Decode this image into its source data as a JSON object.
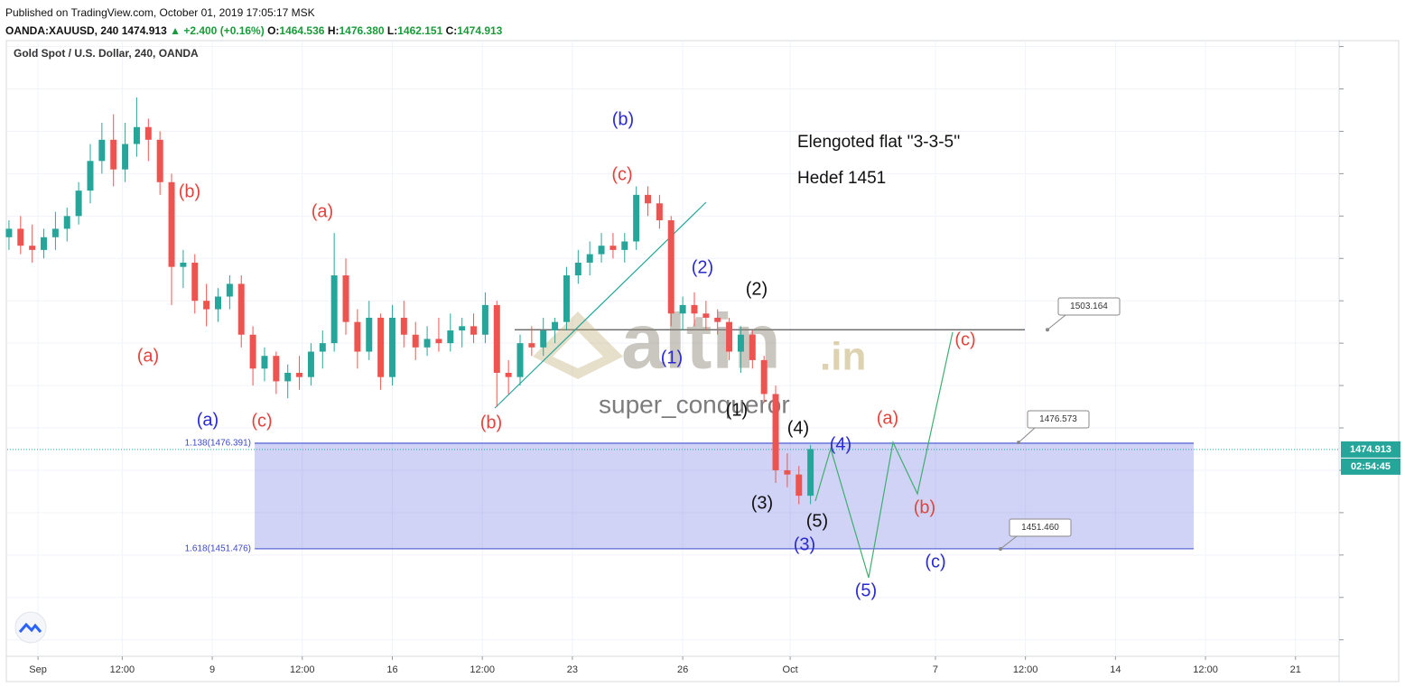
{
  "header": {
    "published": "Published on TradingView.com, October 01, 2019 17:05:17 MSK",
    "symbol": "OANDA:XAUUSD, 240",
    "last": "1474.913",
    "change": "▲ +2.400 (+0.16%)",
    "o_label": "O:",
    "o": "1464.536",
    "h_label": "H:",
    "h": "1476.380",
    "l_label": "L:",
    "l": "1462.151",
    "c_label": "C:",
    "c": "1474.913"
  },
  "chart_data": {
    "type": "candlestick",
    "title": "Gold Spot / U.S. Dollar, 240, OANDA",
    "x": [
      -5,
      -3,
      -1,
      1,
      3,
      5,
      7,
      9,
      11,
      13,
      15,
      17,
      19,
      21,
      23,
      25,
      27,
      29,
      31,
      33,
      35,
      37,
      39,
      41,
      43,
      45,
      47,
      49,
      51,
      53,
      55,
      57,
      59,
      61,
      63,
      65,
      67,
      69,
      71,
      73,
      75,
      77,
      79,
      81,
      83,
      85,
      87,
      89,
      91,
      93,
      95,
      97,
      99,
      101,
      103,
      105,
      107,
      109,
      111,
      113,
      115,
      117,
      119,
      121,
      123,
      125,
      127,
      129,
      131,
      133
    ],
    "open": [
      1525,
      1527,
      1523,
      1522,
      1525,
      1527,
      1530,
      1536,
      1543,
      1548,
      1541,
      1547,
      1551,
      1548,
      1538,
      1518,
      1519,
      1510,
      1508,
      1511,
      1514,
      1502,
      1494,
      1497,
      1491,
      1493,
      1492,
      1498,
      1500,
      1516,
      1505,
      1498,
      1506,
      1492,
      1506,
      1502,
      1499,
      1501,
      1500,
      1503,
      1504,
      1502,
      1509,
      1493,
      1492,
      1500,
      1499,
      1503,
      1505,
      1516,
      1519,
      1521,
      1523,
      1522,
      1524,
      1535,
      1533,
      1529,
      1507,
      1509,
      1507,
      1506,
      1505,
      1498,
      1502,
      1496,
      1488,
      1470,
      1469,
      1464
    ],
    "high": [
      1529,
      1530,
      1528,
      1527,
      1531,
      1532,
      1538,
      1547,
      1552,
      1554,
      1552,
      1558,
      1553,
      1550,
      1540,
      1522,
      1521,
      1514,
      1513,
      1516,
      1516,
      1504,
      1499,
      1498,
      1495,
      1497,
      1500,
      1503,
      1526,
      1520,
      1508,
      1510,
      1507,
      1509,
      1510,
      1505,
      1504,
      1506,
      1507,
      1506,
      1507,
      1512,
      1510,
      1496,
      1502,
      1504,
      1506,
      1506,
      1518,
      1522,
      1524,
      1526,
      1526,
      1526,
      1537,
      1537,
      1535,
      1530,
      1511,
      1512,
      1510,
      1508,
      1506,
      1504,
      1503,
      1497,
      1490,
      1474,
      1471,
      1476
    ],
    "low": [
      1522,
      1521,
      1519,
      1520,
      1522,
      1524,
      1528,
      1533,
      1540,
      1537,
      1538,
      1544,
      1543,
      1535,
      1509,
      1513,
      1507,
      1504,
      1505,
      1508,
      1499,
      1490,
      1491,
      1488,
      1487,
      1489,
      1490,
      1494,
      1498,
      1502,
      1494,
      1496,
      1489,
      1490,
      1499,
      1496,
      1497,
      1498,
      1498,
      1499,
      1500,
      1500,
      1485,
      1488,
      1490,
      1497,
      1497,
      1500,
      1503,
      1514,
      1516,
      1519,
      1520,
      1519,
      1522,
      1530,
      1527,
      1504,
      1503,
      1504,
      1503,
      1502,
      1496,
      1493,
      1494,
      1486,
      1467,
      1466,
      1462,
      1462
    ],
    "close": [
      1527,
      1523,
      1522,
      1525,
      1527,
      1530,
      1536,
      1543,
      1548,
      1541,
      1547,
      1551,
      1548,
      1538,
      1518,
      1519,
      1510,
      1508,
      1511,
      1514,
      1502,
      1494,
      1497,
      1491,
      1493,
      1492,
      1498,
      1500,
      1516,
      1505,
      1498,
      1506,
      1492,
      1506,
      1502,
      1499,
      1501,
      1500,
      1503,
      1504,
      1502,
      1509,
      1493,
      1492,
      1500,
      1499,
      1503,
      1505,
      1516,
      1519,
      1521,
      1523,
      1522,
      1524,
      1535,
      1533,
      1529,
      1507,
      1509,
      1507,
      1506,
      1505,
      1498,
      1502,
      1496,
      1488,
      1470,
      1469,
      1464,
      1475
    ],
    "up_color": "#26a69a",
    "down_color": "#ef5350",
    "xlim": [
      -5.3,
      224
    ],
    "xticks": [
      {
        "value": 0,
        "label": "Sep"
      },
      {
        "value": 14.5,
        "label": "12:00"
      },
      {
        "value": 30,
        "label": "9"
      },
      {
        "value": 45.5,
        "label": "12:00"
      },
      {
        "value": 61,
        "label": "16"
      },
      {
        "value": 76.5,
        "label": "12:00"
      },
      {
        "value": 92,
        "label": "23"
      },
      {
        "value": 111,
        "label": "26"
      },
      {
        "value": 129.5,
        "label": "Oct"
      },
      {
        "value": 154.5,
        "label": "7"
      },
      {
        "value": 170,
        "label": "12:00"
      },
      {
        "value": 185.5,
        "label": "14"
      },
      {
        "value": 201,
        "label": "12:00"
      },
      {
        "value": 216.5,
        "label": "21"
      }
    ],
    "ylim": [
      1426.1,
      1571.4
    ],
    "yticks": [
      1430,
      1440,
      1450,
      1460,
      1470,
      1480,
      1490,
      1500,
      1510,
      1520,
      1530,
      1540,
      1550,
      1560,
      1570
    ],
    "grid": true,
    "fib": [
      {
        "value": 1476.391,
        "label": "1.138(1476.391)"
      },
      {
        "value": 1451.476,
        "label": "1.618(1451.476)"
      }
    ],
    "level_line": 1503.164,
    "callouts": [
      {
        "value": 1503.164,
        "label": "1503.164"
      },
      {
        "value": 1476.573,
        "label": "1476.573"
      },
      {
        "value": 1451.46,
        "label": "1451.460"
      }
    ],
    "last_price": {
      "value": 1474.913,
      "label": "1474.913"
    },
    "countdown": "02:54:45",
    "watermark": {
      "brand": "altin",
      "suffix": ".in",
      "author": "super_conqueror"
    },
    "annotations": [
      {
        "text": "(b)",
        "color": "#2a2ad0"
      },
      {
        "text": "(c)",
        "color": "#e0443c"
      },
      {
        "text": "Elengoted flat ''3-3-5''",
        "color": "#111111"
      },
      {
        "text": "Hedef 1451",
        "color": "#111111"
      },
      {
        "text": "(b)",
        "color": "#e0443c"
      },
      {
        "text": "(a)",
        "color": "#e0443c"
      },
      {
        "text": "(a)",
        "color": "#e0443c"
      },
      {
        "text": "(a)",
        "color": "#2a2ad0"
      },
      {
        "text": "(c)",
        "color": "#e0443c"
      },
      {
        "text": "(b)",
        "color": "#e0443c"
      },
      {
        "text": "(2)",
        "color": "#2a2ad0"
      },
      {
        "text": "(2)",
        "color": "#111111"
      },
      {
        "text": "(1)",
        "color": "#2a2ad0"
      },
      {
        "text": "(1)",
        "color": "#111111"
      },
      {
        "text": "(4)",
        "color": "#111111"
      },
      {
        "text": "(4)",
        "color": "#2a2ad0"
      },
      {
        "text": "(a)",
        "color": "#e0443c"
      },
      {
        "text": "(c)",
        "color": "#e0443c"
      },
      {
        "text": "(3)",
        "color": "#111111"
      },
      {
        "text": "(5)",
        "color": "#111111"
      },
      {
        "text": "(3)",
        "color": "#2a2ad0"
      },
      {
        "text": "(b)",
        "color": "#e0443c"
      },
      {
        "text": "(c)",
        "color": "#2a2ad0"
      },
      {
        "text": "(5)",
        "color": "#2a2ad0"
      }
    ]
  }
}
